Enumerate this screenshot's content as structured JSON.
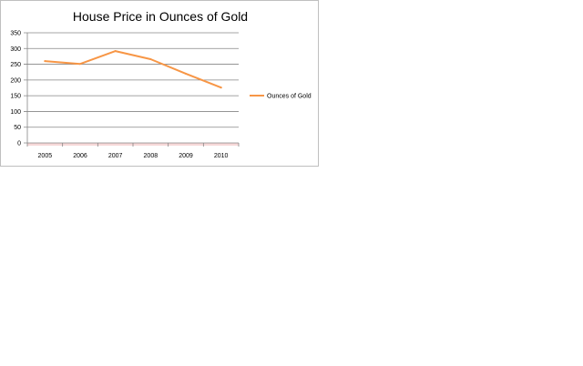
{
  "chart_data": {
    "type": "line",
    "title": "House Price in Ounces of Gold",
    "xlabel": "",
    "ylabel": "",
    "categories": [
      "2005",
      "2006",
      "2007",
      "2008",
      "2009",
      "2010"
    ],
    "series": [
      {
        "name": "Ounces of Gold",
        "values": [
          260,
          251,
          292,
          266,
          220,
          176
        ],
        "color": "#f79646"
      }
    ],
    "ylim": [
      0,
      350
    ],
    "yticks": [
      "0",
      "50",
      "100",
      "150",
      "200",
      "250",
      "300",
      "350"
    ],
    "grid": true,
    "legend": "right",
    "colors": {
      "gridline": "#868686",
      "axis": "#868686",
      "baseline_band": "#f7d8d8"
    }
  }
}
